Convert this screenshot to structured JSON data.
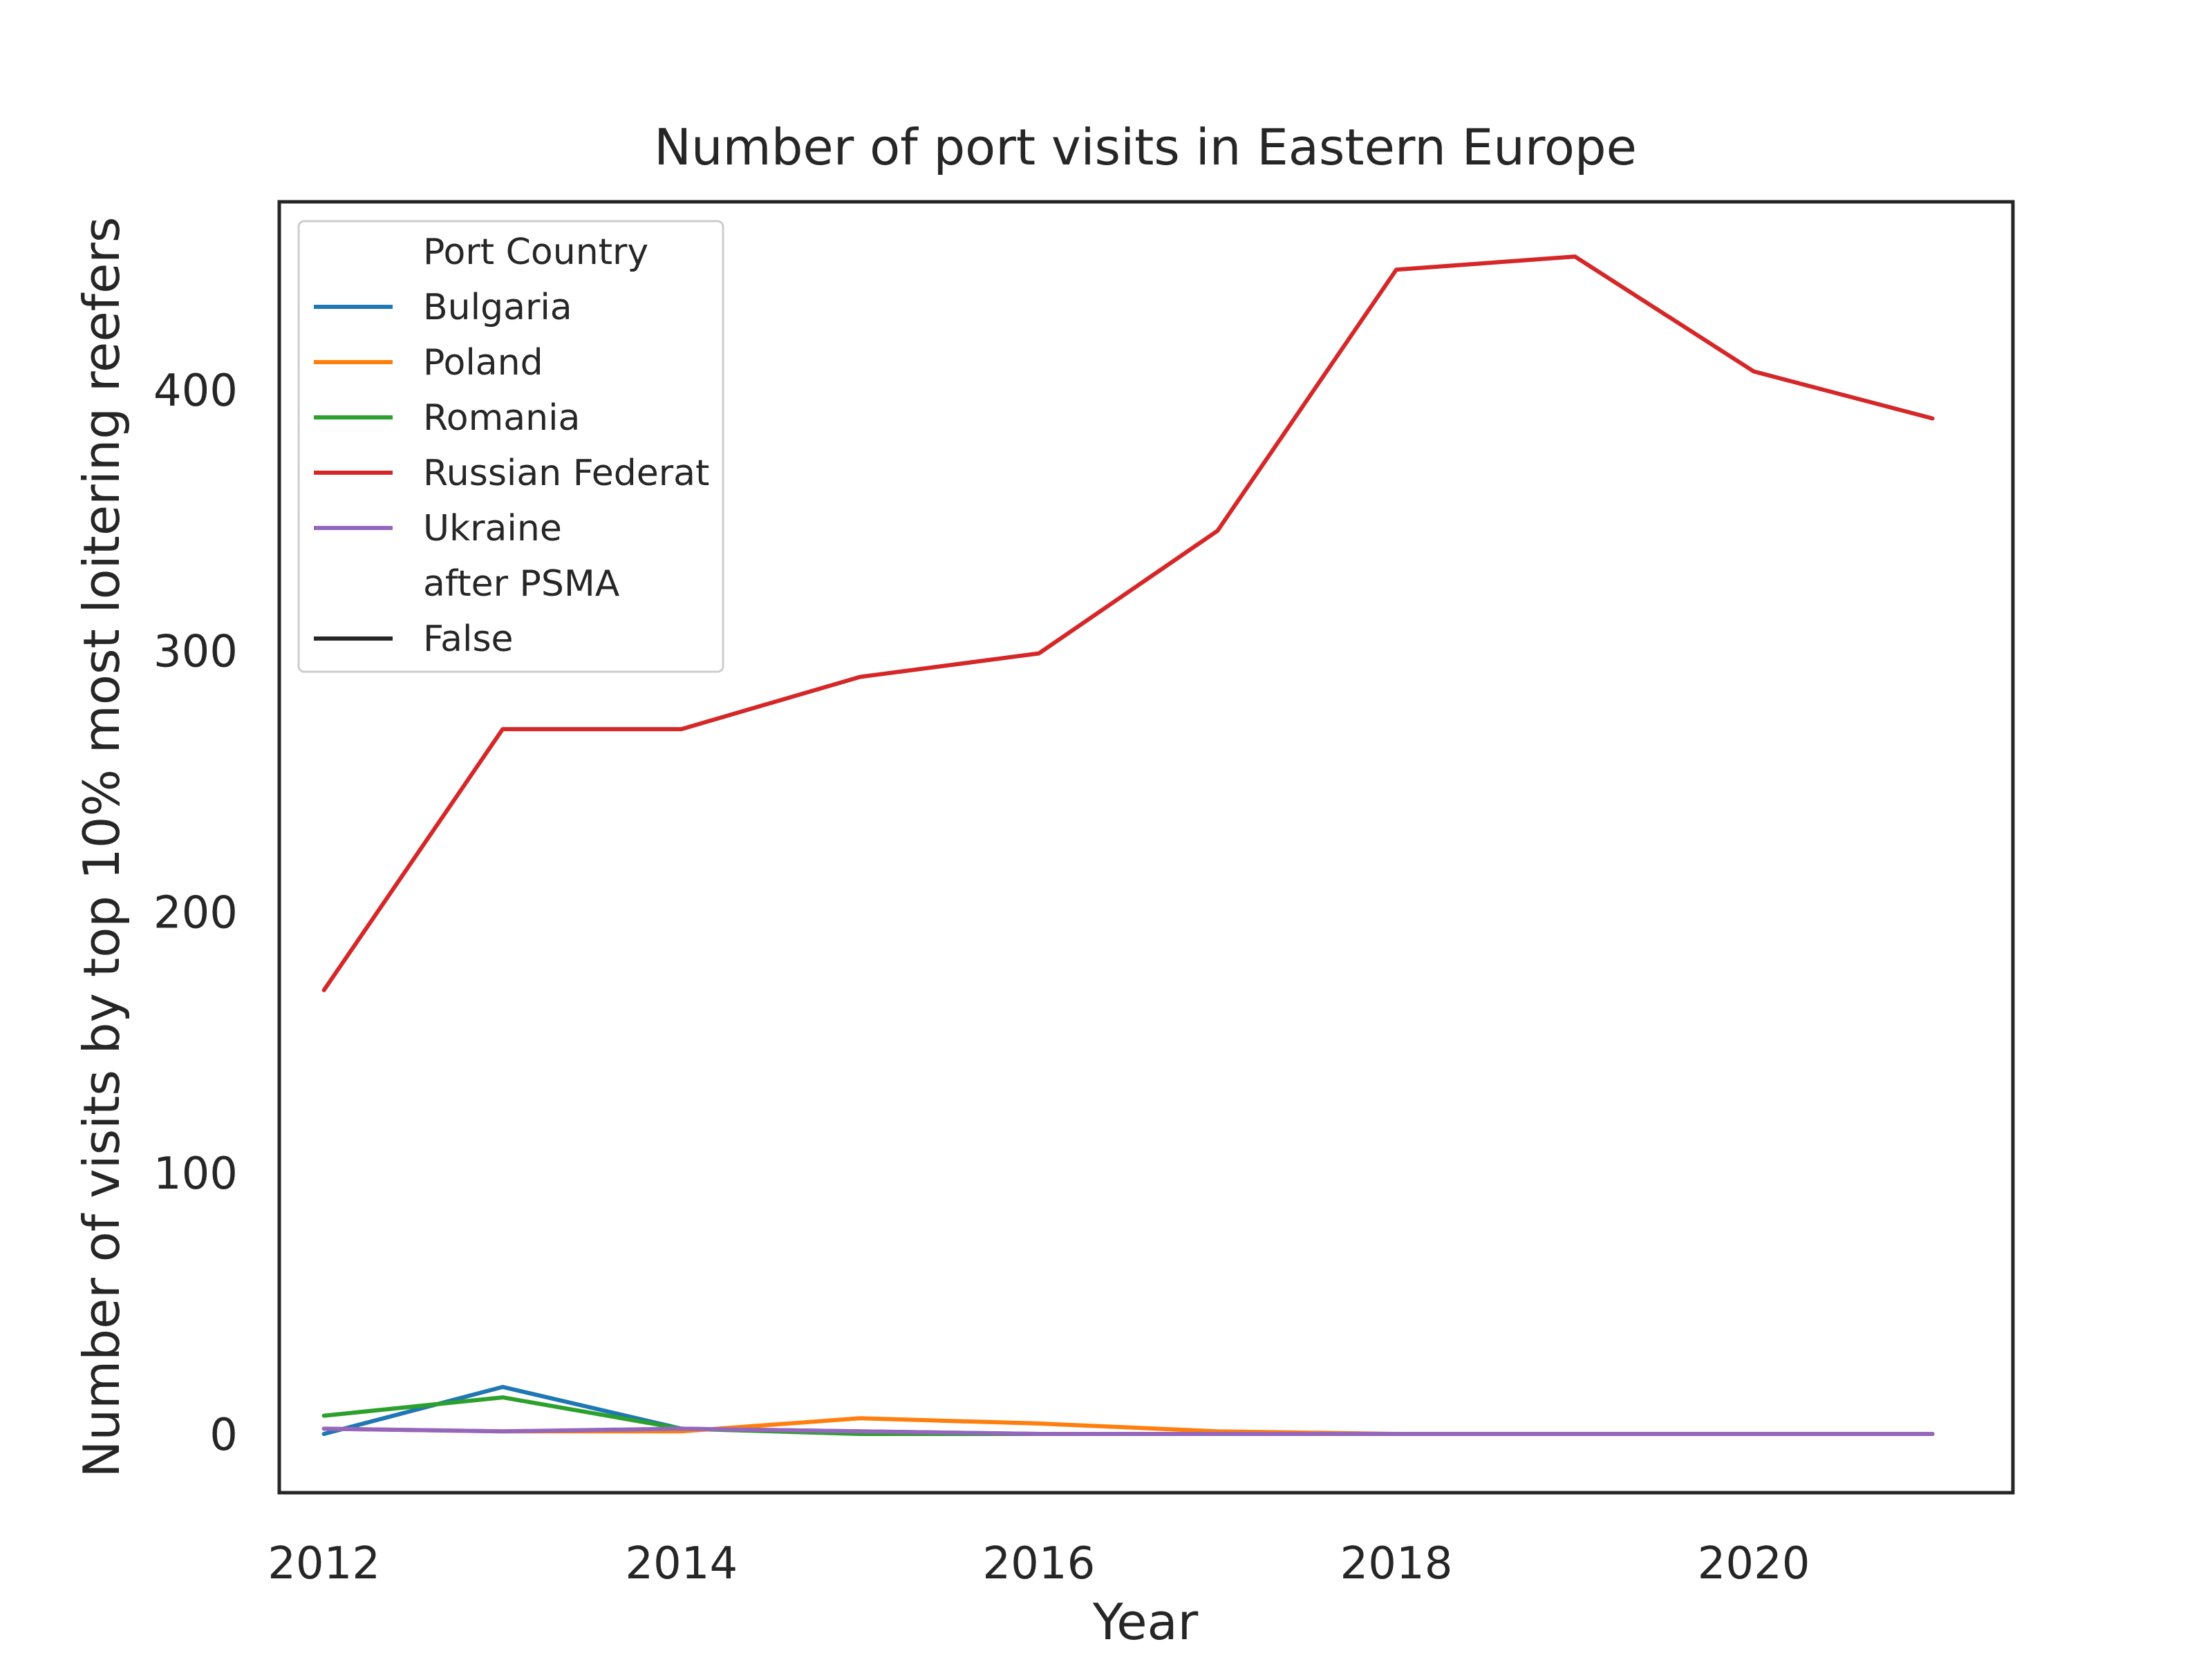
{
  "chart_data": {
    "type": "line",
    "title": "Number of port visits in Eastern Europe",
    "xlabel": "Year",
    "ylabel": "Number of visits by top 10% most loitering reefers",
    "xlim": [
      2011.75,
      2021.45
    ],
    "ylim": [
      -22.5,
      472
    ],
    "xticks": [
      2012,
      2014,
      2016,
      2018,
      2020
    ],
    "yticks": [
      0,
      100,
      200,
      300,
      400
    ],
    "grid": false,
    "legend": {
      "placement": "top-left",
      "entries": [
        {
          "label": "Port Country",
          "header": true
        },
        {
          "label": "Bulgaria",
          "color": "#1f77b4"
        },
        {
          "label": "Poland",
          "color": "#ff7f0e"
        },
        {
          "label": "Romania",
          "color": "#2ca02c"
        },
        {
          "label": "Russian Federat",
          "color": "#d62728"
        },
        {
          "label": "Ukraine",
          "color": "#9467bd"
        },
        {
          "label": "after PSMA",
          "header": true
        },
        {
          "label": "False",
          "color": "#262626"
        }
      ]
    },
    "x": [
      2012,
      2013,
      2014,
      2015,
      2016,
      2017,
      2018,
      2019,
      2020,
      2021
    ],
    "series": [
      {
        "name": "Russian Federat",
        "color": "#d62728",
        "values": [
          170,
          270,
          270,
          290,
          299,
          346,
          446,
          451,
          407,
          389
        ]
      },
      {
        "name": "Bulgaria",
        "color": "#1f77b4",
        "values": [
          0,
          18,
          2,
          1,
          0,
          0,
          0,
          0,
          0,
          0
        ]
      },
      {
        "name": "Romania",
        "color": "#2ca02c",
        "values": [
          7,
          14,
          2,
          0,
          0,
          0,
          0,
          0,
          0,
          0
        ]
      },
      {
        "name": "Poland",
        "color": "#ff7f0e",
        "values": [
          2,
          1,
          1,
          6,
          4,
          1,
          0,
          0,
          0,
          0
        ]
      },
      {
        "name": "Ukraine",
        "color": "#9467bd",
        "values": [
          2,
          1,
          2,
          1,
          0,
          0,
          0,
          0,
          0,
          0
        ]
      }
    ]
  }
}
